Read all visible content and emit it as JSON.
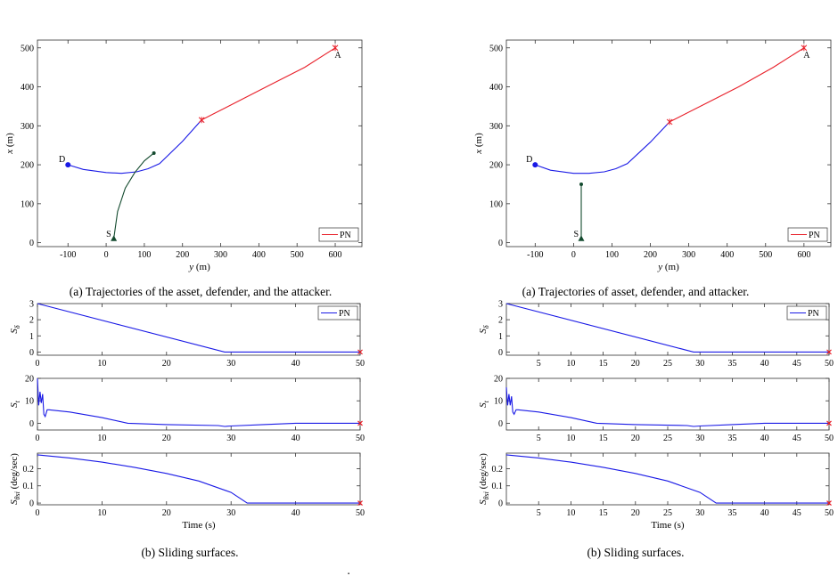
{
  "captions": {
    "left_traj": "(a) Trajectories of the asset, defender, and the attacker.",
    "right_traj": "(a) Trajectories of asset, defender, and attacker.",
    "left_slide": "(b) Sliding surfaces.",
    "right_slide": "(b) Sliding surfaces.",
    "stray_mark": "."
  },
  "colors": {
    "attacker": "#e8202a",
    "defender": "#1a1ae6",
    "asset": "#134a2e",
    "sliding": "#1a1ae6"
  },
  "chart_data": [
    {
      "id": "left-trajectory",
      "type": "line",
      "xlabel": "y (m)",
      "ylabel": "x (m)",
      "xlim": [
        -180,
        670
      ],
      "ylim": [
        -10,
        520
      ],
      "xticks": [
        -100,
        0,
        100,
        200,
        300,
        400,
        500,
        600
      ],
      "yticks": [
        0,
        100,
        200,
        300,
        400,
        500
      ],
      "legend": {
        "entries": [
          "PN"
        ],
        "position": "bottom-right"
      },
      "series": [
        {
          "name": "PN",
          "role": "attacker",
          "x": [
            600,
            520,
            430,
            340,
            250
          ],
          "y": [
            500,
            450,
            405,
            360,
            315
          ]
        },
        {
          "role": "defender",
          "x": [
            -100,
            -60,
            0,
            40,
            80,
            110,
            140,
            200,
            250
          ],
          "y": [
            200,
            188,
            180,
            178,
            182,
            190,
            203,
            260,
            315
          ]
        },
        {
          "role": "asset",
          "x": [
            20,
            30,
            50,
            75,
            100,
            125
          ],
          "y": [
            10,
            80,
            140,
            180,
            210,
            230
          ]
        }
      ],
      "annotations": [
        {
          "text": "A",
          "x": 600,
          "y": 500,
          "marker": "star",
          "role": "attacker"
        },
        {
          "text": "D",
          "x": -100,
          "y": 200,
          "marker": "dot",
          "role": "defender"
        },
        {
          "text": "S",
          "x": 20,
          "y": 10,
          "marker": "triangle",
          "role": "asset"
        },
        {
          "text": "",
          "x": 125,
          "y": 230,
          "marker": "smalldot",
          "role": "asset"
        },
        {
          "text": "",
          "x": 250,
          "y": 315,
          "marker": "star",
          "role": "attacker"
        }
      ]
    },
    {
      "id": "right-trajectory",
      "type": "line",
      "xlabel": "y (m)",
      "ylabel": "x (m)",
      "xlim": [
        -175,
        670
      ],
      "ylim": [
        -10,
        520
      ],
      "xticks": [
        -100,
        0,
        100,
        200,
        300,
        400,
        500,
        600
      ],
      "yticks": [
        0,
        100,
        200,
        300,
        400,
        500
      ],
      "legend": {
        "entries": [
          "PN"
        ],
        "position": "bottom-right"
      },
      "series": [
        {
          "name": "PN",
          "role": "attacker",
          "x": [
            600,
            520,
            430,
            340,
            250
          ],
          "y": [
            500,
            450,
            400,
            355,
            310
          ]
        },
        {
          "role": "defender",
          "x": [
            -100,
            -60,
            0,
            40,
            80,
            110,
            140,
            200,
            250
          ],
          "y": [
            200,
            186,
            178,
            178,
            182,
            190,
            203,
            258,
            310
          ]
        },
        {
          "role": "asset",
          "x": [
            20,
            20
          ],
          "y": [
            10,
            150
          ]
        }
      ],
      "annotations": [
        {
          "text": "A",
          "x": 600,
          "y": 500,
          "marker": "star",
          "role": "attacker"
        },
        {
          "text": "D",
          "x": -100,
          "y": 200,
          "marker": "dot",
          "role": "defender"
        },
        {
          "text": "S",
          "x": 20,
          "y": 10,
          "marker": "triangle",
          "role": "asset"
        },
        {
          "text": "",
          "x": 20,
          "y": 150,
          "marker": "smalldot",
          "role": "asset"
        },
        {
          "text": "",
          "x": 250,
          "y": 310,
          "marker": "star",
          "role": "attacker"
        }
      ]
    },
    {
      "id": "left-s-delta",
      "type": "line",
      "ylabel": "S_δ",
      "xlim": [
        0,
        50
      ],
      "ylim": [
        -0.2,
        3
      ],
      "xticks": [
        0,
        10,
        20,
        30,
        40,
        50
      ],
      "yticks": [
        0,
        1,
        2,
        3
      ],
      "legend": {
        "entries": [
          "PN"
        ],
        "position": "top-right"
      },
      "series": [
        {
          "name": "PN",
          "x": [
            0,
            29,
            50
          ],
          "y": [
            3,
            0,
            0
          ]
        }
      ],
      "end_marker": {
        "x": 50,
        "y": 0
      }
    },
    {
      "id": "left-s-t",
      "type": "line",
      "ylabel": "S_t",
      "xlim": [
        0,
        50
      ],
      "ylim": [
        -3,
        20
      ],
      "xticks": [
        0,
        10,
        20,
        30,
        40,
        50
      ],
      "yticks": [
        0,
        10,
        20
      ],
      "series": [
        {
          "x": [
            0,
            0.2,
            0.4,
            0.6,
            0.8,
            1.0,
            1.2,
            1.5,
            1.8,
            5,
            10,
            14,
            20,
            28,
            29,
            30,
            35,
            40,
            50
          ],
          "y": [
            20,
            8,
            14,
            9,
            13,
            4,
            3,
            6,
            6,
            5,
            2.5,
            0,
            -0.6,
            -1,
            -1.4,
            -1.2,
            -0.6,
            0,
            0
          ]
        }
      ],
      "end_marker": {
        "x": 50,
        "y": 0
      }
    },
    {
      "id": "left-s-theta",
      "type": "line",
      "xlabel": "Time (s)",
      "ylabel": "S_θsi (deg/sec)",
      "xlim": [
        0,
        50
      ],
      "ylim": [
        -0.01,
        0.29
      ],
      "xticks": [
        0,
        10,
        20,
        30,
        40,
        50
      ],
      "yticks": [
        0,
        0.1,
        0.2
      ],
      "series": [
        {
          "x": [
            0,
            5,
            10,
            15,
            20,
            25,
            30,
            32.5,
            50
          ],
          "y": [
            0.28,
            0.262,
            0.238,
            0.208,
            0.172,
            0.128,
            0.062,
            0,
            0
          ]
        }
      ],
      "end_marker": {
        "x": 50,
        "y": 0
      }
    },
    {
      "id": "right-s-delta",
      "type": "line",
      "ylabel": "S_δ",
      "xlim": [
        0,
        50
      ],
      "ylim": [
        -0.2,
        3
      ],
      "xticks": [
        5,
        10,
        15,
        20,
        25,
        30,
        35,
        40,
        45,
        50
      ],
      "yticks": [
        0,
        1,
        2,
        3
      ],
      "legend": {
        "entries": [
          "PN"
        ],
        "position": "top-right"
      },
      "series": [
        {
          "name": "PN",
          "x": [
            0,
            29,
            50
          ],
          "y": [
            3,
            0,
            0
          ]
        }
      ],
      "end_marker": {
        "x": 50,
        "y": 0
      }
    },
    {
      "id": "right-s-t",
      "type": "line",
      "ylabel": "S_t",
      "xlim": [
        0,
        50
      ],
      "ylim": [
        -3,
        20
      ],
      "xticks": [
        5,
        10,
        15,
        20,
        25,
        30,
        35,
        40,
        45,
        50
      ],
      "yticks": [
        0,
        10,
        20
      ],
      "series": [
        {
          "x": [
            0,
            0.2,
            0.4,
            0.6,
            0.8,
            1.0,
            1.2,
            1.5,
            1.8,
            5,
            10,
            14,
            20,
            28,
            29,
            30,
            35,
            40,
            50
          ],
          "y": [
            16,
            8,
            13,
            8,
            12,
            5,
            4,
            6,
            6,
            5,
            2.5,
            0,
            -0.6,
            -1,
            -1.4,
            -1.2,
            -0.6,
            0,
            0
          ]
        }
      ],
      "end_marker": {
        "x": 50,
        "y": 0
      }
    },
    {
      "id": "right-s-theta",
      "type": "line",
      "xlabel": "Time (s)",
      "ylabel": "S_θsi (deg/sec)",
      "xlim": [
        0,
        50
      ],
      "ylim": [
        -0.01,
        0.29
      ],
      "xticks": [
        5,
        10,
        15,
        20,
        25,
        30,
        35,
        40,
        45,
        50
      ],
      "yticks": [
        0,
        0.1,
        0.2
      ],
      "series": [
        {
          "x": [
            0,
            5,
            10,
            15,
            20,
            25,
            30,
            32.5,
            50
          ],
          "y": [
            0.28,
            0.262,
            0.238,
            0.208,
            0.172,
            0.128,
            0.062,
            0,
            0
          ]
        }
      ],
      "end_marker": {
        "x": 50,
        "y": 0
      }
    }
  ]
}
